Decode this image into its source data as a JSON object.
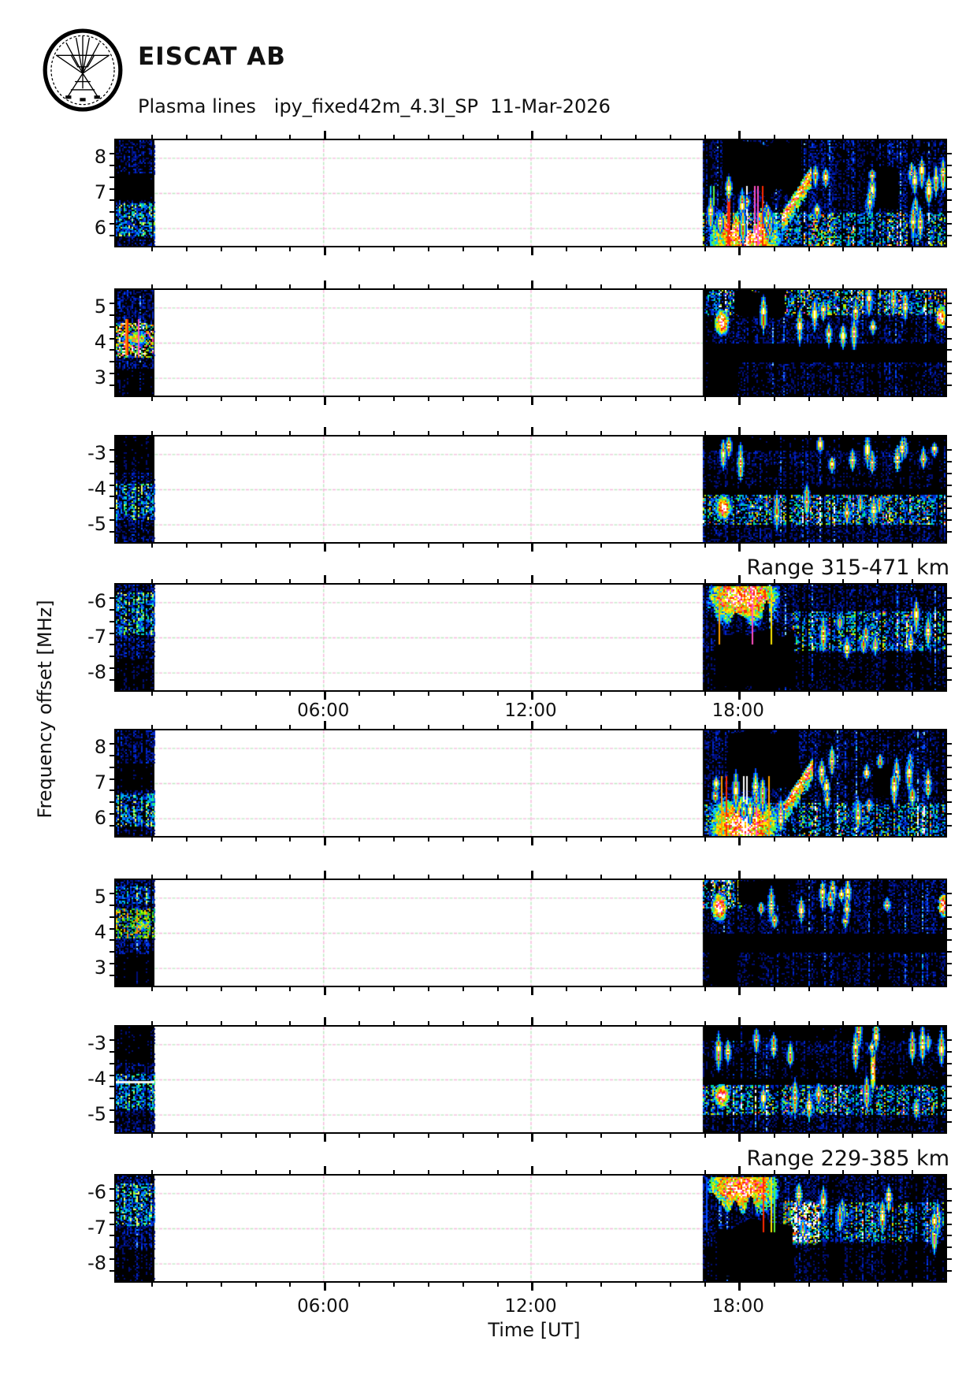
{
  "header": {
    "title": "EISCAT AB",
    "subtitle": "Plasma lines   ipy_fixed42m_4.3l_SP  11-Mar-2026",
    "logo": "eiscat-antenna-emblem"
  },
  "y_axis_title": "Frequency offset [MHz]",
  "x_axis": {
    "label": "Time [UT]",
    "lim_hours": [
      0,
      24
    ],
    "major_ticks": [
      {
        "hour": 6,
        "label": "06:00"
      },
      {
        "hour": 12,
        "label": "12:00"
      },
      {
        "hour": 18,
        "label": "18:00"
      }
    ],
    "minor_tick_step_hours": 1
  },
  "range_labels": [
    {
      "text": "Range 315-471 km"
    },
    {
      "text": "Range 229-385 km"
    }
  ],
  "colors": {
    "background": "#ffffff",
    "axis": "#000000",
    "text": "#111111",
    "grid_pink": "#f4b8da",
    "grid_green": "#bce8c0",
    "spectrogram_background": "#000000",
    "palette_low": "#000e77",
    "palette_mid": "#00c8ff",
    "palette_high": "#ffe900",
    "palette_peak": "#ffffff"
  },
  "chart_data": {
    "type": "heatmap",
    "title": "Plasma lines ipy_fixed42m_4.3l_SP 11-Mar-2026",
    "xlabel": "Time [UT]",
    "ylabel": "Frequency offset [MHz]",
    "xlim_hours": [
      0,
      24
    ],
    "x_major_tick_hours": [
      6,
      12,
      18
    ],
    "minor_y_tick_step_mhz": 0.3333,
    "data_intervals_hours": [
      [
        0,
        1.12
      ],
      [
        16.97,
        24
      ]
    ],
    "groups": [
      {
        "range_label": "Range 315-471 km",
        "panel_ids": [
          1,
          2,
          3,
          4
        ]
      },
      {
        "range_label": "Range 229-385 km",
        "panel_ids": [
          5,
          6,
          7,
          8
        ]
      }
    ],
    "panels": [
      {
        "id": 1,
        "group": 1,
        "ylim": [
          5.5,
          8.5
        ],
        "yticks": [
          8,
          7,
          6
        ],
        "seed": 101,
        "left": {
          "lanes": [
            {
              "f0": 5.8,
              "f1": 6.75,
              "boost": 1.7,
              "pal": "cool"
            },
            {
              "f0": 6.8,
              "f1": 7.6,
              "boost": 0.5,
              "pal": "blue"
            }
          ],
          "blobs": [],
          "white_rows": []
        },
        "right": {
          "lanes": [
            {
              "f0": 5.5,
              "f1": 6.45,
              "boost": 1.55,
              "pal": "rainbow"
            },
            {
              "f0": 7.9,
              "f1": 8.5,
              "boost": 1.1,
              "pal": "blue"
            }
          ],
          "dark_lanes": [],
          "black_patches": [
            {
              "t0": 17.55,
              "t1": 19.8,
              "f0": 6.95,
              "f1": 8.5
            },
            {
              "t0": 21.85,
              "t1": 22.6,
              "f0": 6.55,
              "f1": 7.7
            }
          ],
          "blobs": [
            {
              "t0": 17.05,
              "t1": 19.6,
              "fLo": 5.55,
              "fHi": 6.9,
              "anchor": "lo",
              "core": 1.0
            }
          ],
          "ridges": [
            {
              "t0": 19.25,
              "t1": 20.1,
              "fStart": 6.35,
              "fEnd": 7.65
            }
          ],
          "spots": [],
          "streaks": [
            {
              "n": 9,
              "t0": 17.15,
              "t1": 19.7,
              "f0": 5.9,
              "f1": 7.3
            },
            {
              "n": 16,
              "t0": 19.9,
              "t1": 23.95,
              "f0": 6.1,
              "f1": 7.7
            }
          ]
        }
      },
      {
        "id": 2,
        "group": 1,
        "ylim": [
          2.5,
          5.5
        ],
        "yticks": [
          5,
          4,
          3
        ],
        "seed": 202,
        "left": {
          "lanes": [
            {
              "f0": 3.6,
              "f1": 4.6,
              "boost": 1.8,
              "pal": "hot"
            },
            {
              "f0": 2.5,
              "f1": 3.3,
              "boost": 0.55,
              "pal": "blue"
            }
          ],
          "blobs": [
            {
              "t0": 0.1,
              "t1": 1.05,
              "fLo": 3.75,
              "fHi": 4.55,
              "anchor": "mid",
              "core": 0.85
            }
          ],
          "white_rows": []
        },
        "right": {
          "lanes": [
            {
              "f0": 4.8,
              "f1": 5.5,
              "boost": 1.6,
              "pal": "rainbow"
            },
            {
              "f0": 2.5,
              "f1": 3.35,
              "boost": 0.85,
              "pal": "blue"
            }
          ],
          "dark_lanes": [
            {
              "f0": 3.45,
              "f1": 4.0
            }
          ],
          "black_patches": [
            {
              "t0": 17.9,
              "t1": 19.35,
              "f0": 4.75,
              "f1": 5.5
            },
            {
              "t0": 17.15,
              "t1": 18.0,
              "f0": 2.5,
              "f1": 3.6
            }
          ],
          "blobs": [],
          "ridges": [],
          "spots": [
            {
              "t": 17.5,
              "f": 4.6,
              "rt": 0.28,
              "rf": 0.5
            },
            {
              "t": 23.85,
              "f": 4.75,
              "rt": 0.2,
              "rf": 0.45
            }
          ],
          "streaks": [
            {
              "n": 12,
              "t0": 18.4,
              "t1": 23.8,
              "f0": 4.1,
              "f1": 5.3
            }
          ]
        }
      },
      {
        "id": 3,
        "group": 1,
        "ylim": [
          -5.5,
          -2.5
        ],
        "yticks": [
          -3,
          -4,
          -5
        ],
        "seed": 303,
        "left": {
          "lanes": [
            {
              "f0": -4.85,
              "f1": -3.8,
              "boost": 1.6,
              "pal": "cool"
            },
            {
              "f0": -3.5,
              "f1": -2.5,
              "boost": 0.6,
              "pal": "blue"
            }
          ],
          "blobs": [],
          "white_rows": []
        },
        "right": {
          "lanes": [
            {
              "f0": -5.0,
              "f1": -4.15,
              "boost": 1.65,
              "pal": "rainbow"
            },
            {
              "f0": -2.9,
              "f1": -2.5,
              "boost": 0.55,
              "pal": "blue"
            },
            {
              "f0": -4.1,
              "f1": -3.3,
              "boost": 0.8,
              "pal": "blue"
            }
          ],
          "dark_lanes": [
            {
              "f0": -4.15,
              "f1": -3.95
            }
          ],
          "black_patches": [],
          "blobs": [],
          "ridges": [],
          "spots": [
            {
              "t": 17.55,
              "f": -4.5,
              "rt": 0.3,
              "rf": 0.45
            }
          ],
          "streaks": [
            {
              "n": 13,
              "t0": 17.2,
              "t1": 23.9,
              "f0": -3.3,
              "f1": -2.6
            },
            {
              "n": 6,
              "t0": 18.5,
              "t1": 23.5,
              "f0": -4.9,
              "f1": -4.2
            }
          ]
        }
      },
      {
        "id": 4,
        "group": 1,
        "ylim": [
          -8.5,
          -5.5
        ],
        "yticks": [
          -6,
          -7,
          -8
        ],
        "seed": 404,
        "range_label": "Range 315-471 km",
        "left": {
          "lanes": [
            {
              "f0": -6.9,
              "f1": -5.7,
              "boost": 1.55,
              "pal": "cool"
            },
            {
              "f0": -8.5,
              "f1": -7.6,
              "boost": 0.6,
              "pal": "blue"
            }
          ],
          "blobs": [],
          "white_rows": []
        },
        "right": {
          "lanes": [
            {
              "f0": -7.35,
              "f1": -6.25,
              "boost": 1.5,
              "pal": "rainbow",
              "t0": 19.5,
              "t1": 24
            },
            {
              "f0": -6.2,
              "f1": -5.5,
              "boost": 1.0,
              "pal": "blue"
            },
            {
              "f0": -8.5,
              "f1": -7.4,
              "boost": 0.75,
              "pal": "blue"
            }
          ],
          "dark_lanes": [],
          "black_patches": [
            {
              "t0": 17.35,
              "t1": 19.6,
              "f0": -8.5,
              "f1": -6.9
            }
          ],
          "blobs": [
            {
              "t0": 16.98,
              "t1": 19.55,
              "fLo": -6.85,
              "fHi": -5.55,
              "anchor": "hi",
              "core": 1.0
            }
          ],
          "ridges": [],
          "spots": [],
          "streaks": [
            {
              "n": 10,
              "t0": 19.7,
              "t1": 23.9,
              "f0": -7.3,
              "f1": -6.0
            }
          ]
        }
      },
      {
        "id": 5,
        "group": 2,
        "ylim": [
          5.5,
          8.5
        ],
        "yticks": [
          8,
          7,
          6
        ],
        "seed": 505,
        "left": {
          "lanes": [
            {
              "f0": 5.8,
              "f1": 6.75,
              "boost": 1.7,
              "pal": "cool"
            },
            {
              "f0": 6.8,
              "f1": 7.6,
              "boost": 0.5,
              "pal": "blue"
            }
          ],
          "blobs": [],
          "white_rows": []
        },
        "right": {
          "lanes": [
            {
              "f0": 5.5,
              "f1": 6.45,
              "boost": 1.55,
              "pal": "rainbow"
            },
            {
              "f0": 7.9,
              "f1": 8.5,
              "boost": 1.1,
              "pal": "blue"
            }
          ],
          "dark_lanes": [],
          "black_patches": [
            {
              "t0": 17.7,
              "t1": 19.7,
              "f0": 6.95,
              "f1": 8.5
            },
            {
              "t0": 22.0,
              "t1": 22.7,
              "f0": 6.6,
              "f1": 7.6
            }
          ],
          "blobs": [
            {
              "t0": 17.05,
              "t1": 19.5,
              "fLo": 5.55,
              "fHi": 6.9,
              "anchor": "lo",
              "core": 1.0
            }
          ],
          "ridges": [
            {
              "t0": 19.3,
              "t1": 20.15,
              "fStart": 6.35,
              "fEnd": 7.6
            }
          ],
          "spots": [],
          "streaks": [
            {
              "n": 9,
              "t0": 17.15,
              "t1": 19.7,
              "f0": 5.9,
              "f1": 7.3
            },
            {
              "n": 15,
              "t0": 19.9,
              "t1": 23.95,
              "f0": 6.1,
              "f1": 7.7
            }
          ]
        }
      },
      {
        "id": 6,
        "group": 2,
        "ylim": [
          2.5,
          5.5
        ],
        "yticks": [
          5,
          4,
          3
        ],
        "seed": 606,
        "left": {
          "lanes": [
            {
              "f0": 3.85,
              "f1": 4.7,
              "boost": 1.75,
              "pal": "greens"
            },
            {
              "f0": 4.85,
              "f1": 5.35,
              "boost": 1.25,
              "pal": "cool"
            },
            {
              "f0": 2.5,
              "f1": 3.4,
              "boost": 0.5,
              "pal": "blue"
            }
          ],
          "blobs": [
            {
              "t0": 0.55,
              "t1": 1.1,
              "fLo": 3.95,
              "fHi": 4.5,
              "anchor": "mid",
              "core": 0.85
            }
          ],
          "white_rows": []
        },
        "right": {
          "lanes": [
            {
              "f0": 4.7,
              "f1": 5.5,
              "boost": 1.8,
              "pal": "rainbow",
              "t0": 16.97,
              "t1": 18.1
            },
            {
              "f0": 2.5,
              "f1": 3.35,
              "boost": 0.85,
              "pal": "blue"
            }
          ],
          "dark_lanes": [
            {
              "f0": 3.45,
              "f1": 4.0
            }
          ],
          "black_patches": [
            {
              "t0": 18.0,
              "t1": 19.45,
              "f0": 4.8,
              "f1": 5.5
            },
            {
              "t0": 17.2,
              "t1": 17.95,
              "f0": 2.5,
              "f1": 3.5
            }
          ],
          "blobs": [],
          "ridges": [],
          "spots": [
            {
              "t": 17.45,
              "f": 4.75,
              "rt": 0.3,
              "rf": 0.55
            },
            {
              "t": 23.9,
              "f": 4.8,
              "rt": 0.18,
              "rf": 0.45
            }
          ],
          "streaks": [
            {
              "n": 12,
              "t0": 18.4,
              "t1": 23.8,
              "f0": 4.1,
              "f1": 5.3
            }
          ]
        }
      },
      {
        "id": 7,
        "group": 2,
        "ylim": [
          -5.5,
          -2.5
        ],
        "yticks": [
          -3,
          -4,
          -5
        ],
        "seed": 707,
        "left": {
          "lanes": [
            {
              "f0": -4.85,
              "f1": -3.8,
              "boost": 1.6,
              "pal": "cool"
            },
            {
              "f0": -3.5,
              "f1": -2.5,
              "boost": 0.6,
              "pal": "blue"
            }
          ],
          "blobs": [],
          "white_rows": [
            {
              "f": -4.05
            }
          ]
        },
        "right": {
          "lanes": [
            {
              "f0": -5.0,
              "f1": -4.15,
              "boost": 1.6,
              "pal": "rainbow"
            },
            {
              "f0": -2.9,
              "f1": -2.5,
              "boost": 0.55,
              "pal": "blue"
            },
            {
              "f0": -4.1,
              "f1": -3.3,
              "boost": 0.8,
              "pal": "blue"
            }
          ],
          "dark_lanes": [
            {
              "f0": -4.15,
              "f1": -3.95
            }
          ],
          "black_patches": [],
          "blobs": [],
          "ridges": [],
          "spots": [
            {
              "t": 17.5,
              "f": -4.45,
              "rt": 0.3,
              "rf": 0.45
            },
            {
              "t": 21.9,
              "f": -3.7,
              "rt": 0.1,
              "rf": 0.9
            }
          ],
          "streaks": [
            {
              "n": 13,
              "t0": 17.2,
              "t1": 23.9,
              "f0": -3.3,
              "f1": -2.6
            },
            {
              "n": 6,
              "t0": 18.5,
              "t1": 23.5,
              "f0": -4.9,
              "f1": -4.2
            }
          ]
        }
      },
      {
        "id": 8,
        "group": 2,
        "ylim": [
          -8.5,
          -5.5
        ],
        "yticks": [
          -6,
          -7,
          -8
        ],
        "seed": 808,
        "range_label": "Range 229-385 km",
        "left": {
          "lanes": [
            {
              "f0": -6.9,
              "f1": -5.7,
              "boost": 1.55,
              "pal": "cool"
            },
            {
              "f0": -8.5,
              "f1": -7.6,
              "boost": 0.6,
              "pal": "blue"
            }
          ],
          "blobs": [],
          "white_rows": []
        },
        "right": {
          "lanes": [
            {
              "f0": -7.45,
              "f1": -6.2,
              "boost": 1.8,
              "pal": "greens",
              "t0": 19.3,
              "t1": 20.35
            },
            {
              "f0": -7.35,
              "f1": -6.25,
              "boost": 1.45,
              "pal": "rainbow",
              "t0": 19.5,
              "t1": 24
            },
            {
              "f0": -6.2,
              "f1": -5.5,
              "boost": 1.0,
              "pal": "blue"
            },
            {
              "f0": -8.5,
              "f1": -7.4,
              "boost": 0.75,
              "pal": "blue"
            }
          ],
          "dark_lanes": [],
          "black_patches": [
            {
              "t0": 17.4,
              "t1": 19.55,
              "f0": -8.5,
              "f1": -6.9
            }
          ],
          "blobs": [
            {
              "t0": 16.98,
              "t1": 19.5,
              "fLo": -6.8,
              "fHi": -5.55,
              "anchor": "hi",
              "core": 1.0
            }
          ],
          "ridges": [],
          "spots": [],
          "streaks": [
            {
              "n": 10,
              "t0": 19.7,
              "t1": 23.9,
              "f0": -7.3,
              "f1": -6.0
            }
          ]
        }
      }
    ]
  }
}
